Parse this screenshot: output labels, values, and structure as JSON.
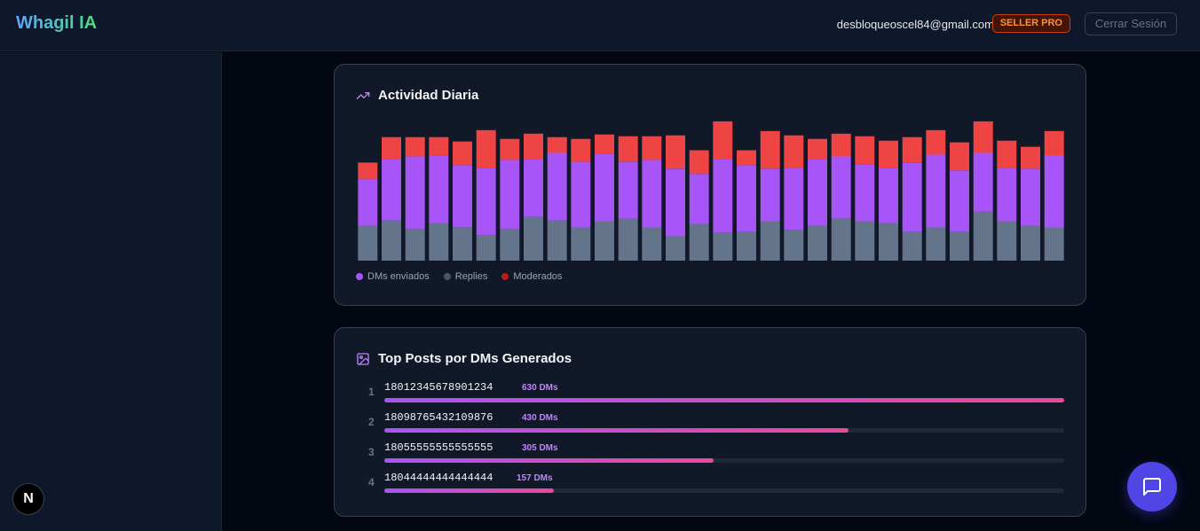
{
  "header": {
    "brand": "Whagil IA",
    "email": "desbloqueoscel84@gmail.com",
    "plan_badge": "SELLER PRO",
    "logout_label": "Cerrar Sesión"
  },
  "dev_badge": "N",
  "activity": {
    "title": "Actividad Diaria",
    "icon": "trending-up-icon",
    "legend": [
      {
        "label": "DMs enviados",
        "color": "#a855f7"
      },
      {
        "label": "Replies",
        "color": "#4b5563"
      },
      {
        "label": "Moderados",
        "color": "#b91c1c"
      }
    ]
  },
  "chart_data": {
    "type": "bar",
    "stacked": true,
    "series": [
      {
        "name": "Replies",
        "color": "#64748b",
        "values": [
          40,
          46,
          36,
          43,
          38,
          29,
          36,
          50,
          46,
          38,
          45,
          48,
          38,
          28,
          42,
          32,
          33,
          45,
          35,
          40,
          48,
          45,
          43,
          33,
          38,
          33,
          56,
          45,
          40,
          38
        ]
      },
      {
        "name": "DMs enviados",
        "color": "#a855f7",
        "values": [
          53,
          70,
          83,
          77,
          71,
          77,
          79,
          66,
          77,
          75,
          77,
          65,
          77,
          77,
          57,
          84,
          76,
          60,
          71,
          76,
          71,
          65,
          63,
          79,
          83,
          70,
          67,
          61,
          65,
          82
        ]
      },
      {
        "name": "Moderados",
        "color": "#ef4444",
        "values": [
          19,
          25,
          22,
          21,
          27,
          43,
          24,
          29,
          18,
          26,
          22,
          29,
          27,
          38,
          27,
          43,
          17,
          43,
          37,
          23,
          26,
          32,
          31,
          29,
          28,
          32,
          36,
          31,
          25,
          28
        ]
      }
    ]
  },
  "top_posts": {
    "title": "Top Posts por DMs Generados",
    "icon": "image-icon",
    "items": [
      {
        "rank": "1",
        "id": "18012345678901234",
        "dms": "630 DMs",
        "value": 630
      },
      {
        "rank": "2",
        "id": "18098765432109876",
        "dms": "430 DMs",
        "value": 430
      },
      {
        "rank": "3",
        "id": "18055555555555555",
        "dms": "305 DMs",
        "value": 305
      },
      {
        "rank": "4",
        "id": "18044444444444444",
        "dms": "157 DMs",
        "value": 157
      }
    ]
  },
  "chat_button": {
    "icon": "chat-bubble-icon"
  }
}
